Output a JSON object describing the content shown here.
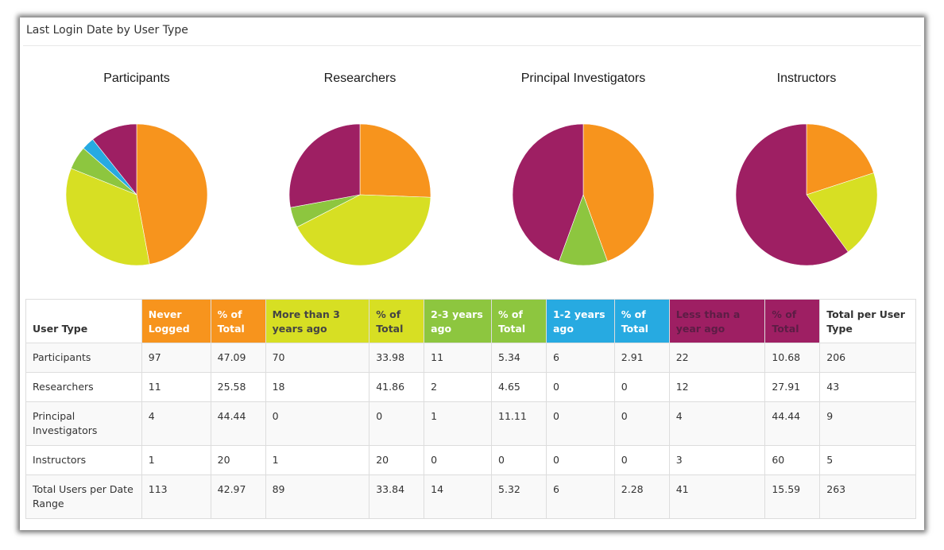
{
  "panel": {
    "title": "Last Login Date by User Type"
  },
  "colors": {
    "never_logged": "#f7941d",
    "more_than_3": "#d7df23",
    "two_to_three": "#8dc63f",
    "one_to_two": "#27aae1",
    "less_than_one": "#9e1f63"
  },
  "chart_data": [
    {
      "type": "pie",
      "title": "Participants",
      "categories": [
        "Never Logged",
        "More than 3 years ago",
        "2-3 years ago",
        "1-2 years ago",
        "Less than a year ago"
      ],
      "values": [
        97,
        70,
        11,
        6,
        22
      ],
      "colors": [
        "#f7941d",
        "#d7df23",
        "#8dc63f",
        "#27aae1",
        "#9e1f63"
      ]
    },
    {
      "type": "pie",
      "title": "Researchers",
      "categories": [
        "Never Logged",
        "More than 3 years ago",
        "2-3 years ago",
        "1-2 years ago",
        "Less than a year ago"
      ],
      "values": [
        11,
        18,
        2,
        0,
        12
      ],
      "colors": [
        "#f7941d",
        "#d7df23",
        "#8dc63f",
        "#27aae1",
        "#9e1f63"
      ]
    },
    {
      "type": "pie",
      "title": "Principal Investigators",
      "categories": [
        "Never Logged",
        "More than 3 years ago",
        "2-3 years ago",
        "1-2 years ago",
        "Less than a year ago"
      ],
      "values": [
        4,
        0,
        1,
        0,
        4
      ],
      "colors": [
        "#f7941d",
        "#d7df23",
        "#8dc63f",
        "#27aae1",
        "#9e1f63"
      ]
    },
    {
      "type": "pie",
      "title": "Instructors",
      "categories": [
        "Never Logged",
        "More than 3 years ago",
        "2-3 years ago",
        "1-2 years ago",
        "Less than a year ago"
      ],
      "values": [
        1,
        1,
        0,
        0,
        3
      ],
      "colors": [
        "#f7941d",
        "#d7df23",
        "#8dc63f",
        "#27aae1",
        "#9e1f63"
      ]
    }
  ],
  "table": {
    "headers": {
      "user_type": "User Type",
      "never": "Never Logged",
      "never_pct": "% of Total",
      "more3": "More than 3 years ago",
      "more3_pct": "% of Total",
      "y2_3": "2-3 years ago",
      "y2_3_pct": "% of Total",
      "y1_2": "1-2 years ago",
      "y1_2_pct": "% of Total",
      "lt1": "Less than a year ago",
      "lt1_pct": "% of Total",
      "total": "Total per User Type"
    },
    "rows": [
      [
        "Participants",
        "97",
        "47.09",
        "70",
        "33.98",
        "11",
        "5.34",
        "6",
        "2.91",
        "22",
        "10.68",
        "206"
      ],
      [
        "Researchers",
        "11",
        "25.58",
        "18",
        "41.86",
        "2",
        "4.65",
        "0",
        "0",
        "12",
        "27.91",
        "43"
      ],
      [
        "Principal Investigators",
        "4",
        "44.44",
        "0",
        "0",
        "1",
        "11.11",
        "0",
        "0",
        "4",
        "44.44",
        "9"
      ],
      [
        "Instructors",
        "1",
        "20",
        "1",
        "20",
        "0",
        "0",
        "0",
        "0",
        "3",
        "60",
        "5"
      ],
      [
        "Total Users per Date Range",
        "113",
        "42.97",
        "89",
        "33.84",
        "14",
        "5.32",
        "6",
        "2.28",
        "41",
        "15.59",
        "263"
      ]
    ]
  }
}
